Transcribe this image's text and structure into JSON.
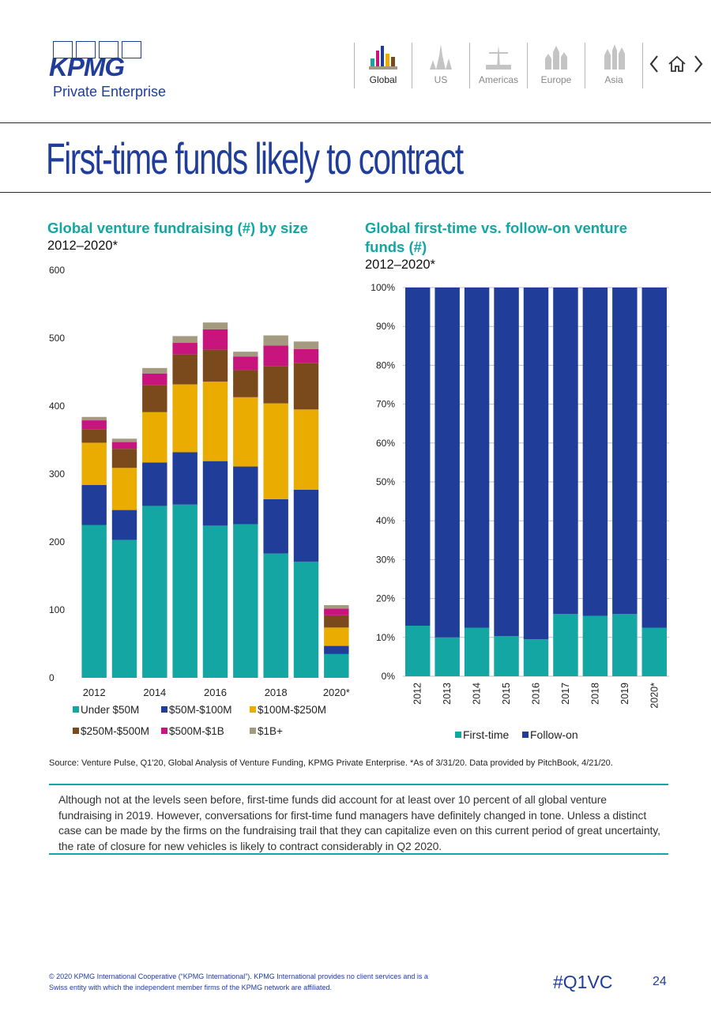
{
  "brand": {
    "logo_text": "KPMG",
    "logo_subtitle": "Private Enterprise",
    "primary_color": "#1f3d99",
    "accent_color": "#13a6a3"
  },
  "nav": {
    "items": [
      {
        "label": "Global",
        "active": true
      },
      {
        "label": "US",
        "active": false
      },
      {
        "label": "Americas",
        "active": false
      },
      {
        "label": "Europe",
        "active": false
      },
      {
        "label": "Asia",
        "active": false
      }
    ],
    "arrows": [
      "previous-arrow-icon",
      "home-icon",
      "next-arrow-icon"
    ]
  },
  "page": {
    "title": "First-time funds likely to contract"
  },
  "left_chart": {
    "title": "Global venture fundraising (#) by size",
    "subtitle": "2012–2020*"
  },
  "right_chart": {
    "title_line1": "Global first-time vs. follow-on venture",
    "title_line2": "funds (#)",
    "subtitle": "2012–2020*"
  },
  "chart_data": [
    {
      "type": "bar",
      "stacked": true,
      "categories": [
        "2012",
        "2013",
        "2014",
        "2015",
        "2016",
        "2017",
        "2018",
        "2019",
        "2020*"
      ],
      "x_tick_labels": [
        "2012",
        "2014",
        "2016",
        "2018",
        "2020*"
      ],
      "ylim": [
        0,
        600
      ],
      "y_ticks": [
        "0",
        "100",
        "200",
        "300",
        "400",
        "500",
        "600"
      ],
      "legend_position": "bottom",
      "series": [
        {
          "name": "Under $50M",
          "color": "#13a6a3",
          "values": [
            225,
            203,
            253,
            255,
            224,
            226,
            183,
            171,
            35
          ]
        },
        {
          "name": "$50M-$100M",
          "color": "#1f3d99",
          "values": [
            59,
            44,
            64,
            77,
            95,
            85,
            80,
            106,
            12
          ]
        },
        {
          "name": "$100M-$250M",
          "color": "#eaac00",
          "values": [
            62,
            62,
            74,
            100,
            117,
            102,
            141,
            118,
            27
          ]
        },
        {
          "name": "$250M-$500M",
          "color": "#7a4a1c",
          "values": [
            20,
            28,
            40,
            44,
            47,
            40,
            55,
            68,
            18
          ]
        },
        {
          "name": "$500M-$1B",
          "color": "#c8157d",
          "values": [
            13,
            10,
            17,
            17,
            30,
            20,
            30,
            21,
            10
          ]
        },
        {
          "name": "$1B+",
          "color": "#a39a80",
          "values": [
            5,
            5,
            8,
            10,
            10,
            7,
            15,
            11,
            5
          ]
        }
      ]
    },
    {
      "type": "bar",
      "stacked": true,
      "percent": true,
      "categories": [
        "2012",
        "2013",
        "2014",
        "2015",
        "2016",
        "2017",
        "2018",
        "2019",
        "2020*"
      ],
      "ylim": [
        0,
        100
      ],
      "y_ticks": [
        "0%",
        "10%",
        "20%",
        "30%",
        "40%",
        "50%",
        "60%",
        "70%",
        "80%",
        "90%",
        "100%"
      ],
      "grid": true,
      "legend_position": "bottom",
      "series": [
        {
          "name": "First-time",
          "color": "#13a6a3",
          "values": [
            13,
            10,
            12.5,
            10.3,
            9.5,
            16,
            15.5,
            16,
            12.5
          ]
        },
        {
          "name": "Follow-on",
          "color": "#1f3d99",
          "values": [
            87,
            90,
            87.5,
            89.7,
            90.5,
            84,
            84.5,
            84,
            87.5
          ]
        }
      ]
    }
  ],
  "source": "Source: Venture Pulse, Q1'20, Global Analysis of Venture Funding, KPMG Private Enterprise. *As of 3/31/20. Data provided by PitchBook, 4/21/20.",
  "body_text": "Although not at the levels seen before, first-time funds did account for at least over 10 percent of all global venture fundraising in 2019. However, conversations for first-time fund managers have definitely changed in tone. Unless a distinct case can be made by the firms on the fundraising trail that they can capitalize even on this current period of great uncertainty, the rate of closure for new vehicles is likely to contract considerably in Q2 2020.",
  "footer": {
    "copyright": "© 2020 KPMG International Cooperative (“KPMG International”). KPMG International provides no client services and is a Swiss entity with which the independent member firms of the KPMG network are affiliated.",
    "hashtag": "#Q1VC",
    "page_number": "24"
  }
}
